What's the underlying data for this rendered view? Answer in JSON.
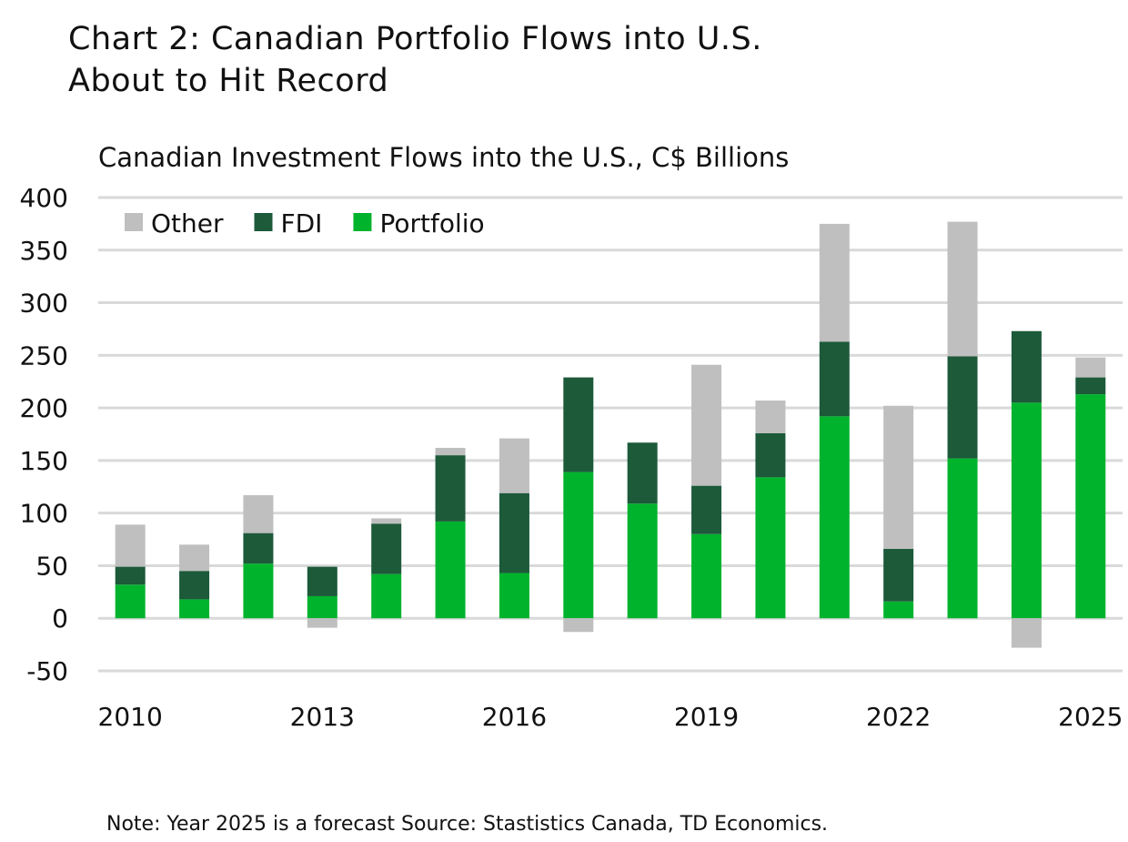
{
  "chart_data": {
    "type": "bar",
    "stacked": true,
    "title": "Chart 2: Canadian Portfolio Flows into U.S. About to Hit Record",
    "title_lines": [
      "Chart 2: Canadian Portfolio Flows into U.S.",
      "About to Hit Record"
    ],
    "subtitle": "Canadian Investment Flows into the U.S., C$ Billions",
    "note": "Note: Year 2025 is a forecast Source: Stastistics Canada, TD Economics.",
    "categories": [
      "2010",
      "2011",
      "2012",
      "2013",
      "2014",
      "2015",
      "2016",
      "2017",
      "2018",
      "2019",
      "2020",
      "2021",
      "2022",
      "2023",
      "2024",
      "2025"
    ],
    "x_tick_labels": [
      "2010",
      "2013",
      "2016",
      "2019",
      "2022",
      "2025"
    ],
    "y_ticks": [
      -50,
      0,
      50,
      100,
      150,
      200,
      250,
      300,
      350,
      400
    ],
    "ylim": [
      -50,
      400
    ],
    "grid": true,
    "legend_placement": "top-left",
    "series": [
      {
        "name": "Portfolio",
        "color": "#00b32d",
        "values": [
          32,
          18,
          52,
          21,
          42,
          92,
          43,
          139,
          109,
          80,
          134,
          192,
          16,
          152,
          205,
          213
        ]
      },
      {
        "name": "FDI",
        "color": "#1c5a3a",
        "values": [
          17,
          27,
          29,
          28,
          48,
          63,
          76,
          90,
          58,
          46,
          42,
          71,
          50,
          97,
          68,
          16
        ]
      },
      {
        "name": "Other",
        "color": "#bfbfbf",
        "values": [
          40,
          25,
          36,
          -9,
          5,
          7,
          52,
          -13,
          0,
          115,
          31,
          112,
          136,
          128,
          -28,
          19
        ]
      }
    ],
    "legend_order": [
      "Other",
      "FDI",
      "Portfolio"
    ]
  }
}
